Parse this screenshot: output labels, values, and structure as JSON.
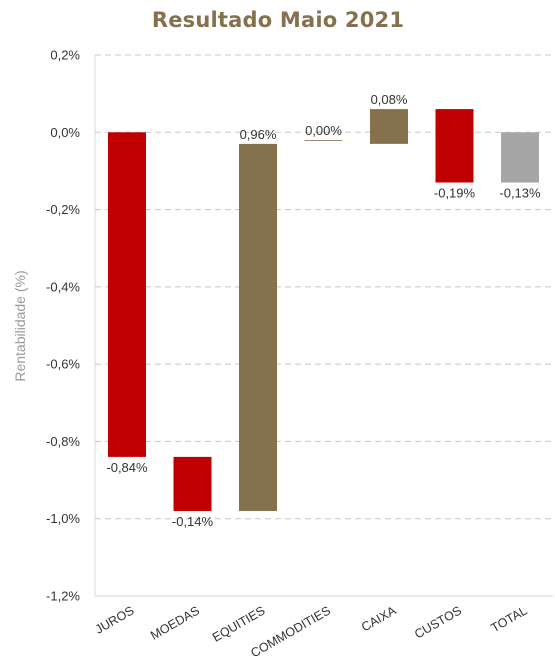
{
  "chart_data": {
    "type": "bar",
    "subtype": "waterfall",
    "title": "Resultado Maio 2021",
    "ylabel": "Rentabilidade (%)",
    "xlabel": "",
    "ylim": [
      -1.2,
      0.2
    ],
    "y_ticks": [
      "0,2%",
      "0,0%",
      "-0,2%",
      "-0,4%",
      "-0,6%",
      "-0,8%",
      "-1,0%",
      "-1,2%"
    ],
    "grid": true,
    "grid_style": "dashed",
    "legend": "none",
    "categories": [
      "JUROS",
      "MOEDAS",
      "EQUITIES",
      "COMMODITIES",
      "CAIXA",
      "CUSTOS",
      "TOTAL"
    ],
    "values": [
      -0.84,
      -0.14,
      0.96,
      0.0,
      0.08,
      -0.19,
      -0.13
    ],
    "value_labels": [
      "-0,84%",
      "-0,14%",
      "0,96%",
      "0,00%",
      "0,08%",
      "-0,19%",
      "-0,13%"
    ],
    "bar_bottoms": [
      -0.84,
      -0.98,
      -0.98,
      -0.02,
      -0.03,
      -0.13,
      -0.13
    ],
    "bar_tops": [
      0.0,
      -0.84,
      -0.03,
      -0.02,
      0.06,
      0.06,
      0.0
    ],
    "bar_colors": [
      "#c00000",
      "#c00000",
      "#85714d",
      "#85714d",
      "#85714d",
      "#c00000",
      "#a6a6a6"
    ],
    "label_positions": [
      "below",
      "below",
      "above",
      "above",
      "above",
      "below",
      "below"
    ]
  },
  "colors": {
    "title": "#85714d",
    "negative": "#c00000",
    "positive": "#85714d",
    "total": "#a6a6a6",
    "grid": "#c8c8c8",
    "axis_text": "#333333",
    "ylabel": "#999999"
  }
}
